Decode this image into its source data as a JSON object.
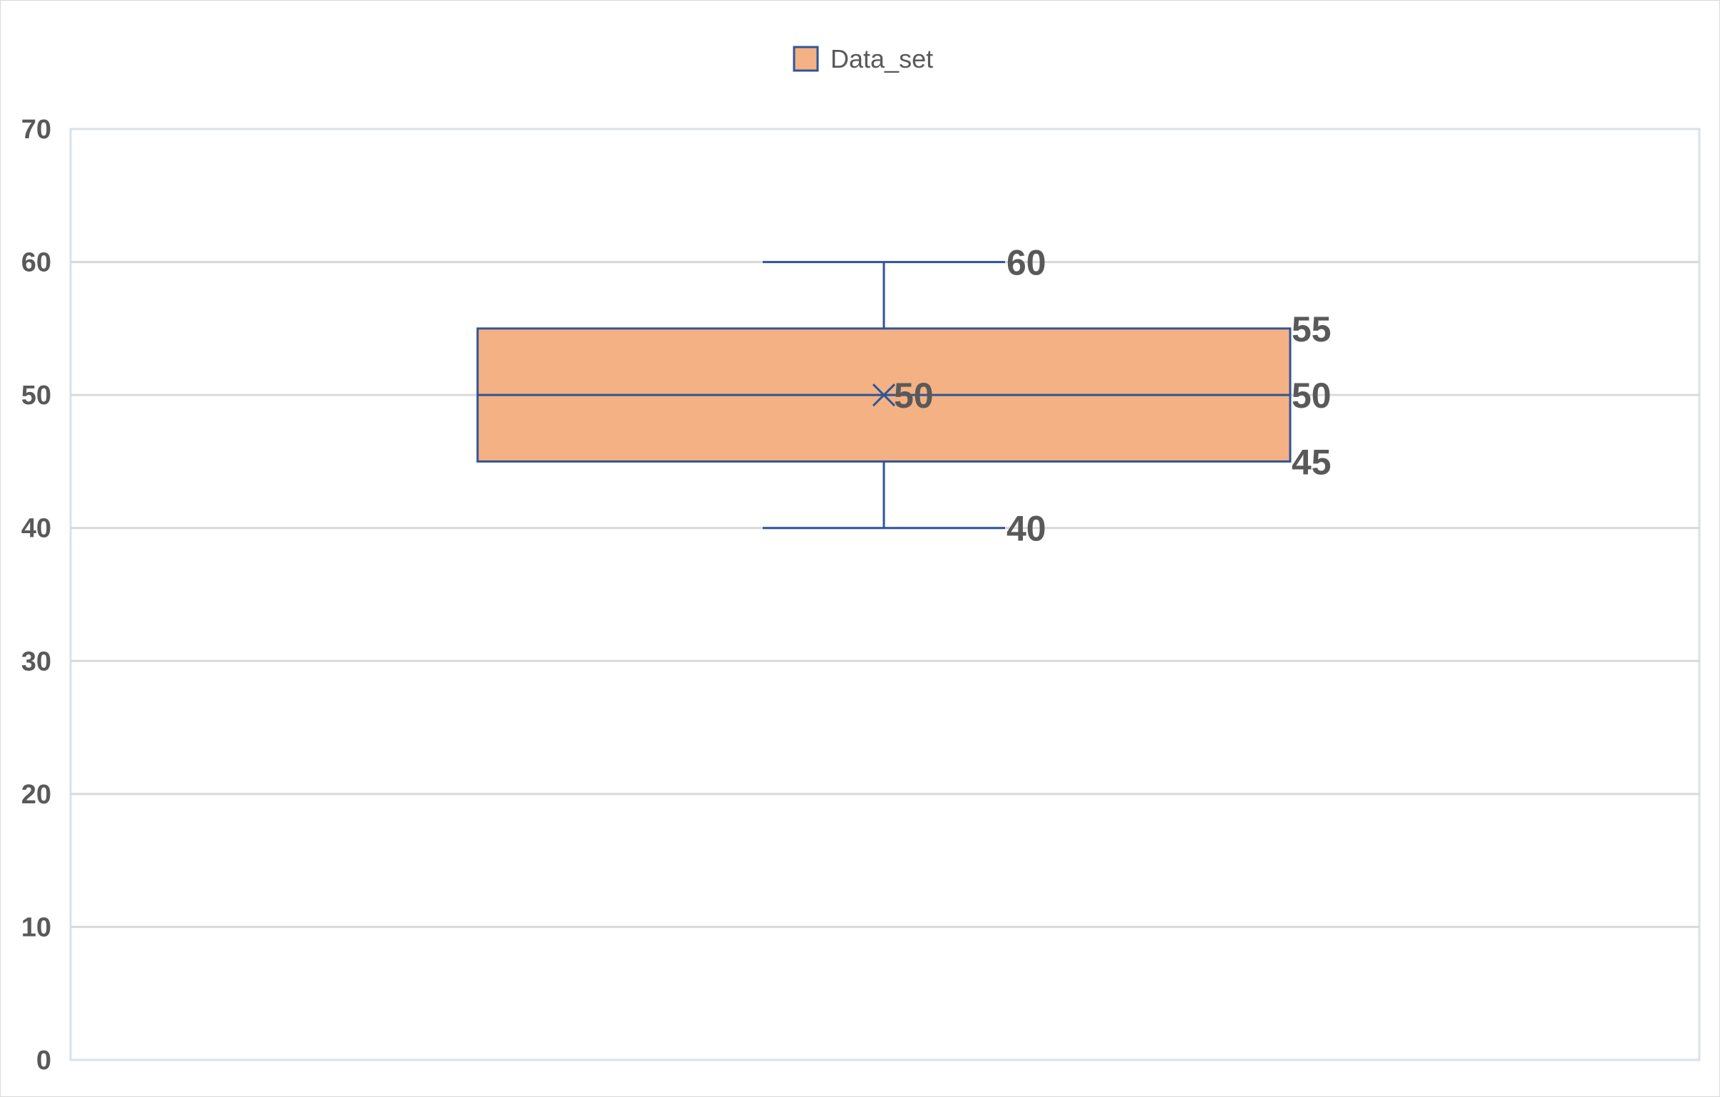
{
  "chart_data": {
    "type": "box",
    "legend": {
      "position": "top",
      "entries": [
        "Data_set"
      ]
    },
    "y_axis": {
      "min": 0,
      "max": 70,
      "step": 10,
      "ticks": [
        "0",
        "10",
        "20",
        "30",
        "40",
        "50",
        "60",
        "70"
      ]
    },
    "grid": true,
    "series": [
      {
        "name": "Data_set",
        "min": 40,
        "q1": 45,
        "median": 50,
        "q3": 55,
        "max": 60,
        "mean": 50,
        "labels": {
          "min": "40",
          "q1": "45",
          "median": "50",
          "q3": "55",
          "max": "60",
          "mean": "50"
        }
      }
    ],
    "colors": {
      "box_fill": "#F4B183",
      "box_stroke": "#2F5597",
      "grid": "#d9d9d9",
      "text": "#595959"
    }
  }
}
